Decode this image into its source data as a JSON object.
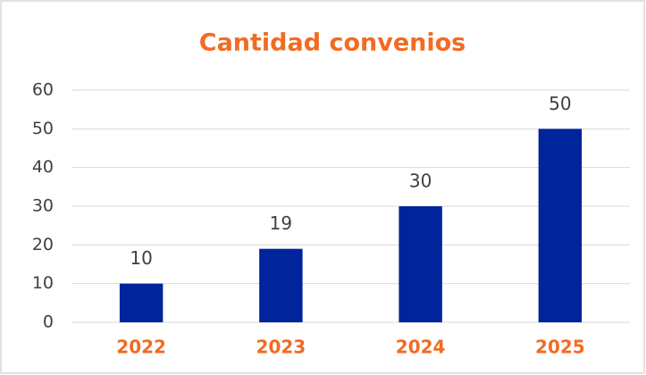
{
  "chart_data": {
    "type": "bar",
    "title": "Cantidad convenios",
    "categories": [
      "2022",
      "2023",
      "2024",
      "2025"
    ],
    "values": [
      10,
      19,
      30,
      50
    ],
    "color": "#00249c",
    "accent_color": "#f26b22",
    "ylim": [
      0,
      60
    ],
    "yticks": [
      0,
      10,
      20,
      30,
      40,
      50,
      60
    ],
    "grid": true,
    "data_labels": true
  }
}
